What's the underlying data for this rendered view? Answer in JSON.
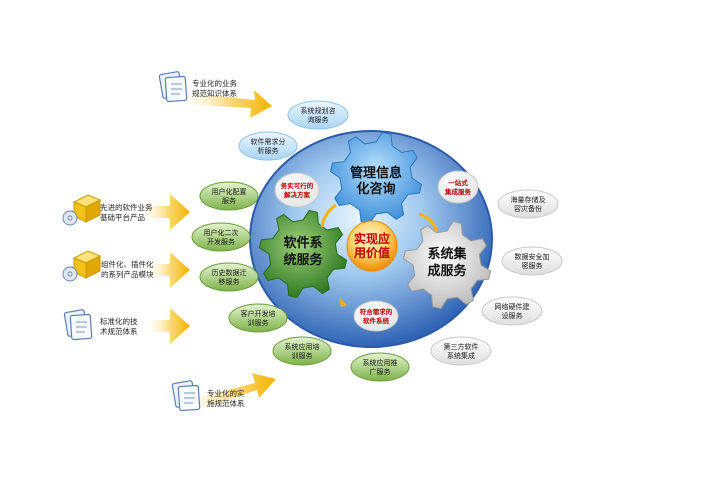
{
  "center": {
    "line1": "实现应",
    "line2": "用价值"
  },
  "gears": {
    "top": {
      "line1": "管理信息",
      "line2": "化咨询"
    },
    "left": {
      "line1": "软件系",
      "line2": "统服务"
    },
    "right": {
      "line1": "系统集",
      "line2": "成服务"
    }
  },
  "red_labels": {
    "feasible": {
      "line1": "务实可行的",
      "line2": "解决方案"
    },
    "onestop": {
      "line1": "一站式",
      "line2": "集成服务"
    },
    "fit": {
      "line1": "符合需求的",
      "line2": "软件系统"
    }
  },
  "blue_pills": [
    {
      "line1": "系统规划咨",
      "line2": "询服务"
    },
    {
      "line1": "软件需求分",
      "line2": "析服务"
    }
  ],
  "green_pills": [
    {
      "line1": "用户化配置",
      "line2": "服务"
    },
    {
      "line1": "用户化二次",
      "line2": "开发服务"
    },
    {
      "line1": "历史数据迁",
      "line2": "移服务"
    },
    {
      "line1": "客户开发培",
      "line2": "训服务"
    },
    {
      "line1": "系统应用培",
      "line2": "训服务"
    },
    {
      "line1": "系统应用推",
      "line2": "广服务"
    }
  ],
  "gray_pills": [
    {
      "line1": "海量存储及",
      "line2": "容灾备份"
    },
    {
      "line1": "数据安全加",
      "line2": "密服务"
    },
    {
      "line1": "网络硬件建",
      "line2": "设服务"
    },
    {
      "line1": "第三方软件",
      "line2": "系统集成"
    }
  ],
  "left_items": [
    {
      "line1": "专业化的业务",
      "line2": "规范知识体系",
      "icon": "document-icon"
    },
    {
      "line1": "先进的软件业务",
      "line2": "基础平台产品",
      "icon": "software-box-icon"
    },
    {
      "line1": "组件化、插件化",
      "line2": "的系列产品模块",
      "icon": "software-box-icon"
    },
    {
      "line1": "标准化的技",
      "line2": "术规范体系",
      "icon": "document-icon"
    },
    {
      "line1": "专业化的实",
      "line2": "施规范体系",
      "icon": "document-icon"
    }
  ],
  "colors": {
    "circle_blue": "#2f63b5",
    "gear_blue": "#4aa0e6",
    "gear_green": "#3f8f2f",
    "gear_gray": "#dcdcdc",
    "center_orange": "#f7a21a",
    "arrow_yellow": "#f4b400",
    "pill_blue": "#bfe0f7",
    "pill_green": "#8cc05a",
    "pill_gray": "#eeeeee"
  }
}
